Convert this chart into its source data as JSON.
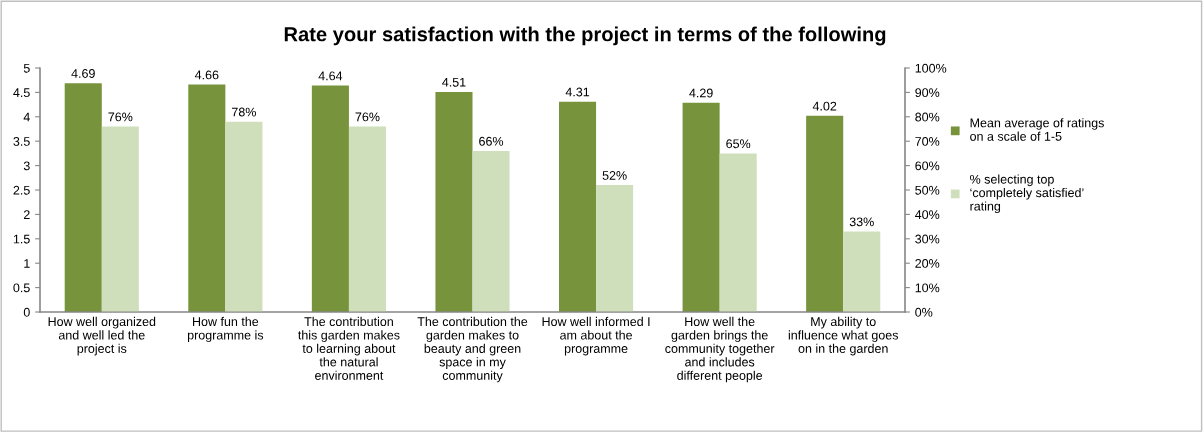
{
  "chart_data": {
    "type": "bar",
    "title": "Rate your satisfaction with the project in terms of the following",
    "categories": [
      "How well organized\nand well led the\nproject is",
      "How fun the\nprogramme is",
      "The contribution\nthis garden makes\nto learning about\nthe natural\nenvironment",
      "The contribution the\ngarden makes to\nbeauty and green\nspace in my\ncommunity",
      "How well informed I\nam about the\nprogramme",
      "How well the\ngarden brings the\ncommunity together\nand includes\ndifferent people",
      "My ability to\ninfluence what goes\non in the garden"
    ],
    "series": [
      {
        "name": "Mean average of ratings\non a scale of 1-5",
        "color": "#77933c",
        "values": [
          4.69,
          4.66,
          4.64,
          4.51,
          4.31,
          4.29,
          4.02
        ],
        "value_labels": [
          "4.69",
          "4.66",
          "4.64",
          "4.51",
          "4.31",
          "4.29",
          "4.02"
        ]
      },
      {
        "name": "% selecting top\n‘completely satisfied’\nrating",
        "color": "#d0dfbb",
        "axis": "y2",
        "values": [
          76,
          78,
          76,
          66,
          52,
          65,
          33
        ],
        "value_labels": [
          "76%",
          "78%",
          "76%",
          "66%",
          "52%",
          "65%",
          "33%"
        ]
      }
    ],
    "ylim": [
      0,
      5
    ],
    "yticks": [
      0,
      0.5,
      1,
      1.5,
      2,
      2.5,
      3,
      3.5,
      4,
      4.5,
      5
    ],
    "y2lim": [
      0,
      100
    ],
    "y2ticks": [
      {
        "value": 0,
        "label": "0%"
      },
      {
        "value": 10,
        "label": "10%"
      },
      {
        "value": 20,
        "label": "20%"
      },
      {
        "value": 30,
        "label": "30%"
      },
      {
        "value": 40,
        "label": "40%"
      },
      {
        "value": 50,
        "label": "50%"
      },
      {
        "value": 60,
        "label": "60%"
      },
      {
        "value": 70,
        "label": "70%"
      },
      {
        "value": 80,
        "label": "80%"
      },
      {
        "value": 90,
        "label": "90%"
      },
      {
        "value": 100,
        "label": "100%"
      }
    ],
    "legend": "right",
    "grid": false
  }
}
